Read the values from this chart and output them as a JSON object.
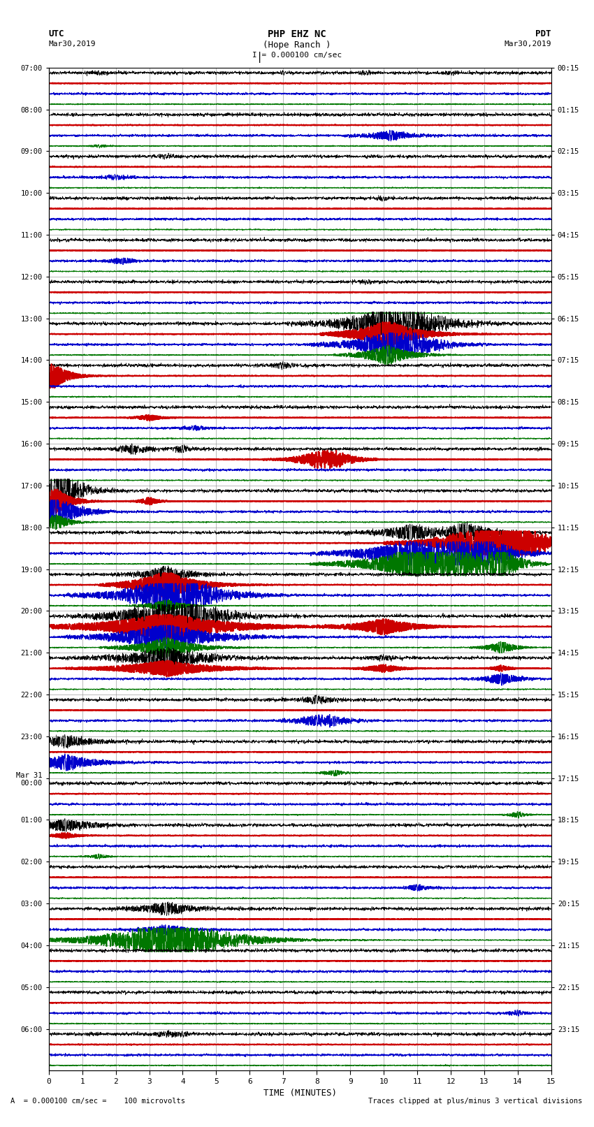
{
  "title_line1": "PHP EHZ NC",
  "title_line2": "(Hope Ranch )",
  "scale_label": "I = 0.000100 cm/sec",
  "utc_label": "UTC",
  "utc_date": "Mar30,2019",
  "pdt_label": "PDT",
  "pdt_date": "Mar30,2019",
  "xlabel": "TIME (MINUTES)",
  "footer_left": "= 0.000100 cm/sec =    100 microvolts",
  "footer_right": "Traces clipped at plus/minus 3 vertical divisions",
  "left_times": [
    "07:00",
    "08:00",
    "09:00",
    "10:00",
    "11:00",
    "12:00",
    "13:00",
    "14:00",
    "15:00",
    "16:00",
    "17:00",
    "18:00",
    "19:00",
    "20:00",
    "21:00",
    "22:00",
    "23:00",
    "Mar 31\n00:00",
    "01:00",
    "02:00",
    "03:00",
    "04:00",
    "05:00",
    "06:00"
  ],
  "right_times": [
    "00:15",
    "01:15",
    "02:15",
    "03:15",
    "04:15",
    "05:15",
    "06:15",
    "07:15",
    "08:15",
    "09:15",
    "10:15",
    "11:15",
    "12:15",
    "13:15",
    "14:15",
    "15:15",
    "16:15",
    "17:15",
    "18:15",
    "19:15",
    "20:15",
    "21:15",
    "22:15",
    "23:15"
  ],
  "n_rows": 24,
  "n_minutes": 15,
  "colors": {
    "black": "#000000",
    "red": "#cc0000",
    "blue": "#0000cc",
    "green": "#007700",
    "background": "#ffffff",
    "grid": "#888888"
  },
  "row_colors_cycle": [
    "#000000",
    "#cc0000",
    "#0000cc",
    "#007700"
  ],
  "figsize": [
    8.5,
    16.13
  ],
  "dpi": 100
}
